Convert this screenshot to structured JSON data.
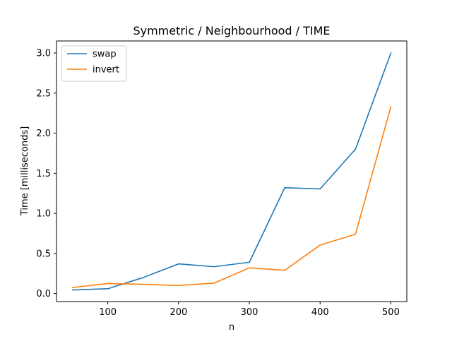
{
  "chart_data": {
    "type": "line",
    "title": "Symmetric / Neighbourhood / TIME",
    "xlabel": "n",
    "ylabel": "Time [milliseconds]",
    "x": [
      50,
      100,
      150,
      200,
      250,
      300,
      350,
      400,
      450,
      500
    ],
    "xlim": [
      27.5,
      522.5
    ],
    "ylim": [
      -0.1,
      3.15
    ],
    "xticks": [
      100,
      200,
      300,
      400,
      500
    ],
    "yticks": [
      0.0,
      0.5,
      1.0,
      1.5,
      2.0,
      2.5,
      3.0
    ],
    "xtick_labels": [
      "100",
      "200",
      "300",
      "400",
      "500"
    ],
    "ytick_labels": [
      "0.0",
      "0.5",
      "1.0",
      "1.5",
      "2.0",
      "2.5",
      "3.0"
    ],
    "grid": false,
    "legend_position": "top-left",
    "series": [
      {
        "name": "swap",
        "color": "#1f77b4",
        "values": [
          0.045,
          0.06,
          0.2,
          0.37,
          0.335,
          0.39,
          1.32,
          1.305,
          1.8,
          3.0
        ]
      },
      {
        "name": "invert",
        "color": "#ff7f0e",
        "values": [
          0.075,
          0.125,
          0.115,
          0.1,
          0.13,
          0.32,
          0.29,
          0.605,
          0.74,
          2.33
        ]
      }
    ]
  }
}
